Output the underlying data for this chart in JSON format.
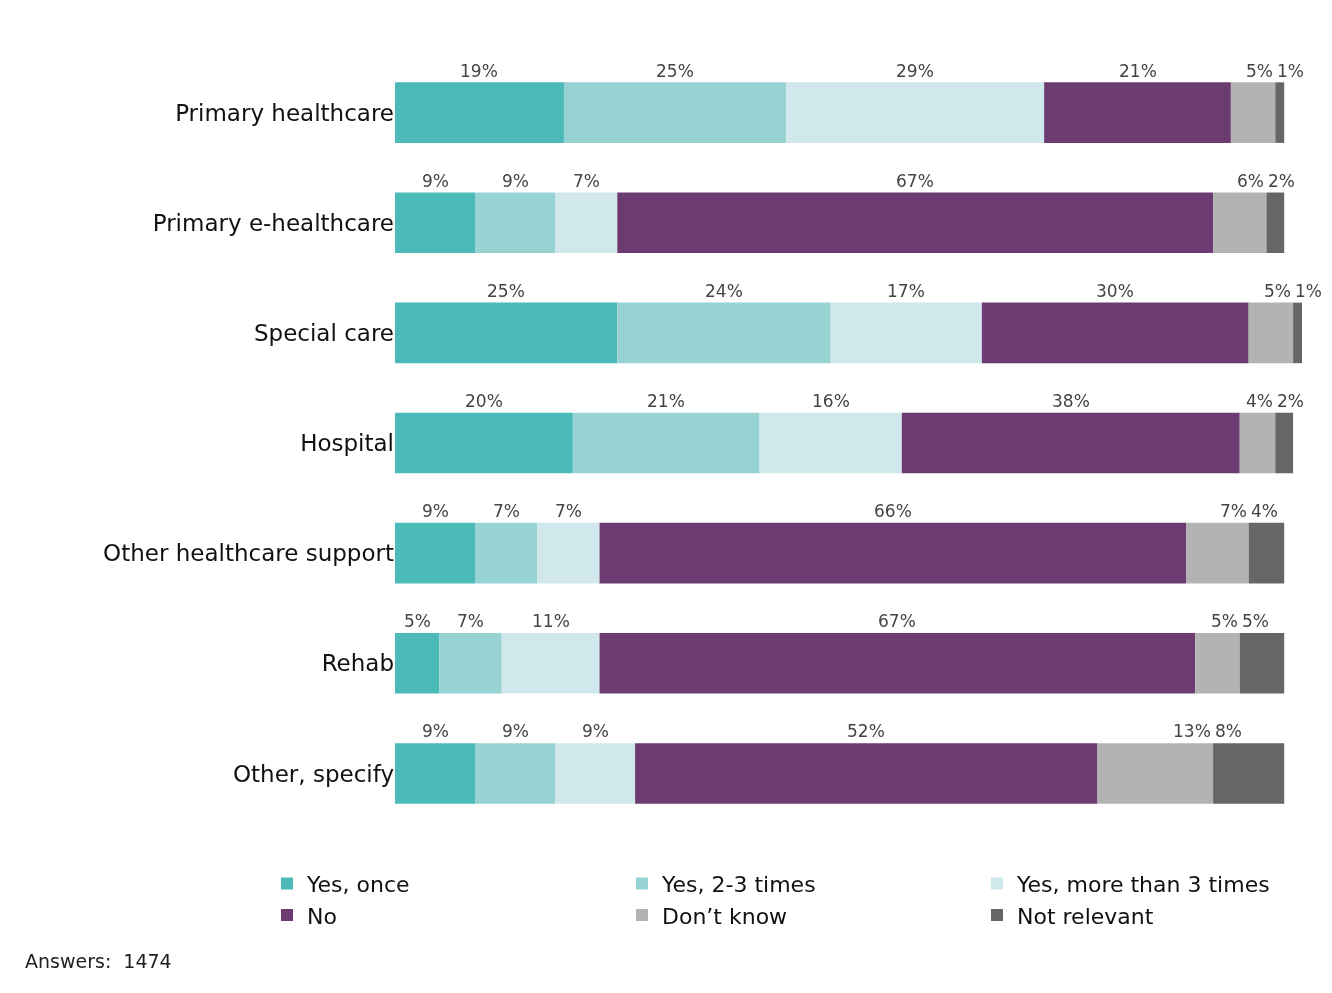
{
  "chart_data": {
    "type": "bar",
    "orientation": "horizontal",
    "stacked": true,
    "legend": "bottom",
    "categories": [
      "Primary healthcare",
      "Primary e-healthcare",
      "Special care",
      "Hospital",
      "Other healthcare support",
      "Rehab",
      "Other, specify"
    ],
    "series": [
      {
        "name": "Yes, once",
        "color": "#4bbab8",
        "values": [
          19,
          9,
          25,
          20,
          9,
          5,
          9
        ],
        "value_labels": [
          "19%",
          "9%",
          "25%",
          "20%",
          "9%",
          "5%",
          "9%"
        ]
      },
      {
        "name": "Yes, 2-3 times",
        "color": "#97d3d2",
        "values": [
          25,
          9,
          24,
          21,
          7,
          7,
          9
        ],
        "value_labels": [
          "25%",
          "9%",
          "24%",
          "21%",
          "7%",
          "7%",
          "9%"
        ]
      },
      {
        "name": "Yes, more than 3 times",
        "color": "#d0e8ec",
        "values": [
          29,
          7,
          17,
          16,
          7,
          11,
          9
        ],
        "value_labels": [
          "29%",
          "7%",
          "17%",
          "16%",
          "7%",
          "11%",
          "9%"
        ]
      },
      {
        "name": "No",
        "color": "#6c3b72",
        "values": [
          21,
          67,
          30,
          38,
          66,
          67,
          52
        ],
        "value_labels": [
          "21%",
          "67%",
          "30%",
          "38%",
          "66%",
          "67%",
          "52%"
        ]
      },
      {
        "name": "Don’t know",
        "color": "#b3b3b3",
        "values": [
          5,
          6,
          5,
          4,
          7,
          5,
          13
        ],
        "value_labels": [
          "5%",
          "6%",
          "5%",
          "4%",
          "7%",
          "5%",
          "13%"
        ]
      },
      {
        "name": "Not relevant",
        "color": "#666666",
        "values": [
          1,
          2,
          1,
          2,
          4,
          5,
          8
        ],
        "value_labels": [
          "1%",
          "2%",
          "1%",
          "2%",
          "4%",
          "5%",
          "8%"
        ]
      }
    ],
    "annotations": [
      "Answers:  1474"
    ]
  }
}
